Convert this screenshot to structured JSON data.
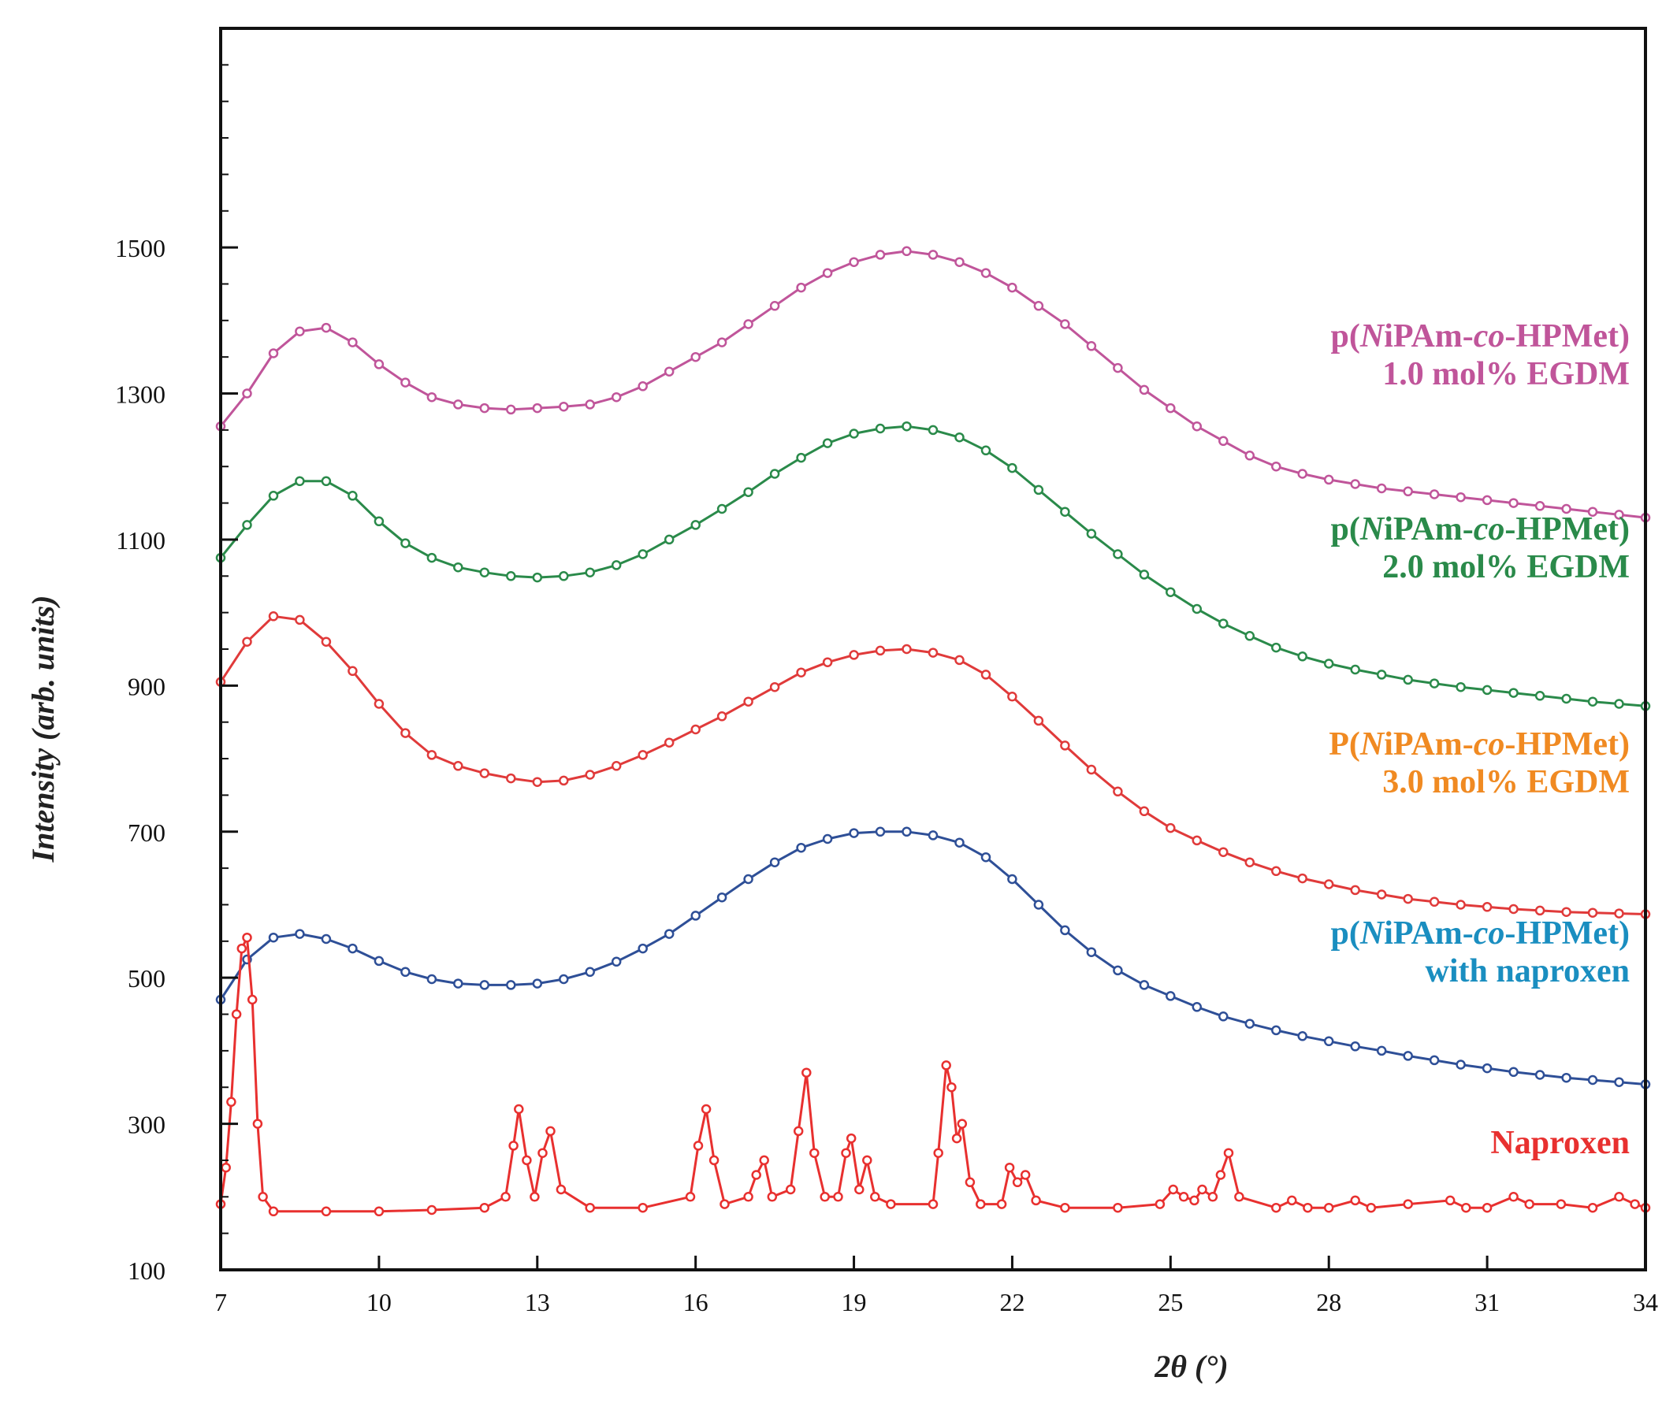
{
  "chart_data": {
    "type": "line",
    "title": "",
    "xlabel": "2θ (°)",
    "ylabel": "Intensity (arb. units)",
    "xlim": [
      7,
      34
    ],
    "ylim": [
      100,
      1800
    ],
    "xticks": [
      7,
      10,
      13,
      16,
      19,
      22,
      25,
      28,
      31,
      34
    ],
    "xtick_labels": [
      "7",
      "10",
      "13",
      "16",
      "19",
      "22",
      "25",
      "28",
      "31",
      "34"
    ],
    "yticks": [
      100,
      300,
      500,
      700,
      900,
      1100,
      1300,
      1500
    ],
    "ytick_labels": [
      "100",
      "300",
      "500",
      "700",
      "900",
      "1100",
      "1300",
      "1500"
    ],
    "grid": false,
    "series": [
      {
        "name": "p(NiPAm-co-HPMet) 1.0 mol% EGDM",
        "label_lines": [
          [
            {
              "text": "p(",
              "italic": false
            },
            {
              "text": "N",
              "italic": true
            },
            {
              "text": "iPAm-",
              "italic": false
            },
            {
              "text": "co",
              "italic": true
            },
            {
              "text": "-HPMet)",
              "italic": false
            }
          ],
          [
            {
              "text": "1.0 mol% EGDM",
              "italic": false
            }
          ]
        ],
        "color": "#c0559a",
        "x": [
          7,
          7.5,
          8,
          8.5,
          9,
          9.5,
          10,
          10.5,
          11,
          11.5,
          12,
          12.5,
          13,
          13.5,
          14,
          14.5,
          15,
          15.5,
          16,
          16.5,
          17,
          17.5,
          18,
          18.5,
          19,
          19.5,
          20,
          20.5,
          21,
          21.5,
          22,
          22.5,
          23,
          23.5,
          24,
          24.5,
          25,
          25.5,
          26,
          26.5,
          27,
          27.5,
          28,
          28.5,
          29,
          29.5,
          30,
          30.5,
          31,
          31.5,
          32,
          32.5,
          33,
          33.5,
          34
        ],
        "y": [
          1255,
          1300,
          1355,
          1385,
          1390,
          1370,
          1340,
          1315,
          1295,
          1285,
          1280,
          1278,
          1280,
          1282,
          1285,
          1295,
          1310,
          1330,
          1350,
          1370,
          1395,
          1420,
          1445,
          1465,
          1480,
          1490,
          1495,
          1490,
          1480,
          1465,
          1445,
          1420,
          1395,
          1365,
          1335,
          1305,
          1280,
          1255,
          1235,
          1215,
          1200,
          1190,
          1182,
          1176,
          1170,
          1166,
          1162,
          1158,
          1154,
          1150,
          1146,
          1142,
          1138,
          1134,
          1130
        ]
      },
      {
        "name": "p(NiPAm-co-HPMet) 2.0 mol% EGDM",
        "label_lines": [
          [
            {
              "text": "p(",
              "italic": false
            },
            {
              "text": "N",
              "italic": true
            },
            {
              "text": "iPAm-",
              "italic": false
            },
            {
              "text": "co",
              "italic": true
            },
            {
              "text": "-HPMet)",
              "italic": false
            }
          ],
          [
            {
              "text": "2.0 mol% EGDM",
              "italic": false
            }
          ]
        ],
        "color": "#2a8a4a",
        "x": [
          7,
          7.5,
          8,
          8.5,
          9,
          9.5,
          10,
          10.5,
          11,
          11.5,
          12,
          12.5,
          13,
          13.5,
          14,
          14.5,
          15,
          15.5,
          16,
          16.5,
          17,
          17.5,
          18,
          18.5,
          19,
          19.5,
          20,
          20.5,
          21,
          21.5,
          22,
          22.5,
          23,
          23.5,
          24,
          24.5,
          25,
          25.5,
          26,
          26.5,
          27,
          27.5,
          28,
          28.5,
          29,
          29.5,
          30,
          30.5,
          31,
          31.5,
          32,
          32.5,
          33,
          33.5,
          34
        ],
        "y": [
          1075,
          1120,
          1160,
          1180,
          1180,
          1160,
          1125,
          1095,
          1075,
          1062,
          1055,
          1050,
          1048,
          1050,
          1055,
          1065,
          1080,
          1100,
          1120,
          1142,
          1165,
          1190,
          1212,
          1232,
          1245,
          1252,
          1255,
          1250,
          1240,
          1222,
          1198,
          1168,
          1138,
          1108,
          1080,
          1052,
          1028,
          1005,
          985,
          968,
          952,
          940,
          930,
          922,
          915,
          908,
          903,
          898,
          894,
          890,
          886,
          882,
          878,
          875,
          872
        ]
      },
      {
        "name": "P(NiPAm-co-HPMet) 3.0 mol% EGDM",
        "label_lines": [
          [
            {
              "text": "P(",
              "italic": false
            },
            {
              "text": "N",
              "italic": true
            },
            {
              "text": "iPAm-",
              "italic": false
            },
            {
              "text": "co",
              "italic": true
            },
            {
              "text": "-HPMet)",
              "italic": false
            }
          ],
          [
            {
              "text": "3.0 mol% EGDM",
              "italic": false
            }
          ]
        ],
        "color": "#e03a3a",
        "label_color": "#f08a22",
        "x": [
          7,
          7.5,
          8,
          8.5,
          9,
          9.5,
          10,
          10.5,
          11,
          11.5,
          12,
          12.5,
          13,
          13.5,
          14,
          14.5,
          15,
          15.5,
          16,
          16.5,
          17,
          17.5,
          18,
          18.5,
          19,
          19.5,
          20,
          20.5,
          21,
          21.5,
          22,
          22.5,
          23,
          23.5,
          24,
          24.5,
          25,
          25.5,
          26,
          26.5,
          27,
          27.5,
          28,
          28.5,
          29,
          29.5,
          30,
          30.5,
          31,
          31.5,
          32,
          32.5,
          33,
          33.5,
          34
        ],
        "y": [
          905,
          960,
          995,
          990,
          960,
          920,
          875,
          835,
          805,
          790,
          780,
          773,
          768,
          770,
          778,
          790,
          805,
          822,
          840,
          858,
          878,
          898,
          918,
          932,
          942,
          948,
          950,
          945,
          935,
          915,
          885,
          852,
          818,
          785,
          755,
          728,
          705,
          688,
          672,
          658,
          646,
          636,
          628,
          620,
          614,
          608,
          604,
          600,
          597,
          594,
          592,
          590,
          589,
          588,
          587
        ]
      },
      {
        "name": "p(NiPAm-co-HPMet) with naproxen",
        "label_lines": [
          [
            {
              "text": "p(",
              "italic": false
            },
            {
              "text": "N",
              "italic": true
            },
            {
              "text": "iPAm-",
              "italic": false
            },
            {
              "text": "co",
              "italic": true
            },
            {
              "text": "-HPMet)",
              "italic": false
            }
          ],
          [
            {
              "text": "with naproxen",
              "italic": false
            }
          ]
        ],
        "color": "#2e4f97",
        "label_color": "#1a8ec0",
        "x": [
          7,
          7.5,
          8,
          8.5,
          9,
          9.5,
          10,
          10.5,
          11,
          11.5,
          12,
          12.5,
          13,
          13.5,
          14,
          14.5,
          15,
          15.5,
          16,
          16.5,
          17,
          17.5,
          18,
          18.5,
          19,
          19.5,
          20,
          20.5,
          21,
          21.5,
          22,
          22.5,
          23,
          23.5,
          24,
          24.5,
          25,
          25.5,
          26,
          26.5,
          27,
          27.5,
          28,
          28.5,
          29,
          29.5,
          30,
          30.5,
          31,
          31.5,
          32,
          32.5,
          33,
          33.5,
          34
        ],
        "y": [
          470,
          525,
          555,
          560,
          553,
          540,
          523,
          508,
          498,
          492,
          490,
          490,
          492,
          498,
          508,
          522,
          540,
          560,
          585,
          610,
          635,
          658,
          678,
          690,
          698,
          700,
          700,
          695,
          685,
          665,
          635,
          600,
          565,
          535,
          510,
          490,
          475,
          460,
          447,
          437,
          428,
          420,
          413,
          406,
          400,
          393,
          387,
          381,
          376,
          371,
          367,
          363,
          360,
          357,
          354
        ]
      },
      {
        "name": "Naproxen",
        "label_lines": [
          [
            {
              "text": "Naproxen",
              "italic": false
            }
          ]
        ],
        "color": "#e8302f",
        "x": [
          7,
          7.1,
          7.2,
          7.3,
          7.4,
          7.5,
          7.6,
          7.7,
          7.8,
          8.0,
          9,
          10,
          11,
          12,
          12.4,
          12.55,
          12.65,
          12.8,
          12.95,
          13.1,
          13.25,
          13.45,
          14,
          15,
          15.9,
          16.05,
          16.2,
          16.35,
          16.55,
          17.0,
          17.15,
          17.3,
          17.45,
          17.8,
          17.95,
          18.1,
          18.25,
          18.45,
          18.7,
          18.85,
          18.95,
          19.1,
          19.25,
          19.4,
          19.7,
          20.5,
          20.6,
          20.75,
          20.85,
          20.95,
          21.05,
          21.2,
          21.4,
          21.8,
          21.95,
          22.1,
          22.25,
          22.45,
          23,
          24,
          24.8,
          25.05,
          25.25,
          25.45,
          25.6,
          25.8,
          25.95,
          26.1,
          26.3,
          27,
          27.3,
          27.6,
          28,
          28.5,
          28.8,
          29.5,
          30.3,
          30.6,
          31,
          31.5,
          31.8,
          32.4,
          33,
          33.5,
          33.8,
          34
        ],
        "y": [
          190,
          240,
          330,
          450,
          540,
          555,
          470,
          300,
          200,
          180,
          180,
          180,
          182,
          185,
          200,
          270,
          320,
          250,
          200,
          260,
          290,
          210,
          185,
          185,
          200,
          270,
          320,
          250,
          190,
          200,
          230,
          250,
          200,
          210,
          290,
          370,
          260,
          200,
          200,
          260,
          280,
          210,
          250,
          200,
          190,
          190,
          260,
          380,
          350,
          280,
          300,
          220,
          190,
          190,
          240,
          220,
          230,
          195,
          185,
          185,
          190,
          210,
          200,
          195,
          210,
          200,
          230,
          260,
          200,
          185,
          195,
          185,
          185,
          195,
          185,
          190,
          195,
          185,
          185,
          200,
          190,
          190,
          185,
          200,
          190,
          185
        ]
      }
    ]
  }
}
